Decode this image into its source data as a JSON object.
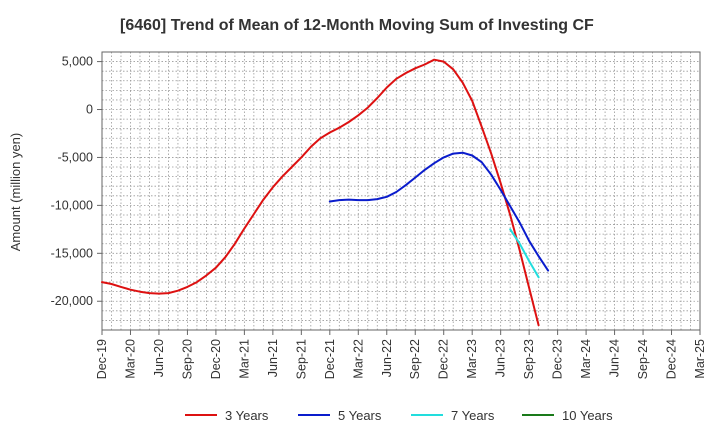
{
  "chart_data": {
    "type": "line",
    "title": "[6460]  Trend of Mean of 12-Month Moving Sum of Investing CF",
    "xlabel": "",
    "ylabel": "Amount (million yen)",
    "ylim": [
      -23000,
      6000
    ],
    "yticks": [
      5000,
      0,
      -5000,
      -10000,
      -15000,
      -20000
    ],
    "ytick_labels": [
      "5,000",
      "0",
      "-5,000",
      "-10,000",
      "-15,000",
      "-20,000"
    ],
    "x_tick_labels": [
      "Dec-19",
      "Mar-20",
      "Jun-20",
      "Sep-20",
      "Dec-20",
      "Mar-21",
      "Jun-21",
      "Sep-21",
      "Dec-21",
      "Mar-22",
      "Jun-22",
      "Sep-22",
      "Dec-22",
      "Mar-23",
      "Jun-23",
      "Sep-23",
      "Dec-23",
      "Mar-24",
      "Jun-24",
      "Sep-24",
      "Dec-24",
      "Mar-25"
    ],
    "grid": true,
    "legend_position": "bottom",
    "series": [
      {
        "name": "3 Years",
        "color": "#dd1111",
        "start_index": 0,
        "values": [
          -18000,
          -18200,
          -18500,
          -18800,
          -19000,
          -19150,
          -19200,
          -19150,
          -18900,
          -18500,
          -18000,
          -17300,
          -16500,
          -15400,
          -14000,
          -12400,
          -10900,
          -9400,
          -8100,
          -7000,
          -6000,
          -5000,
          -3900,
          -3000,
          -2400,
          -1900,
          -1300,
          -600,
          200,
          1200,
          2300,
          3200,
          3800,
          4300,
          4700,
          5200,
          5000,
          4200,
          2800,
          900,
          -1800,
          -4600,
          -7700,
          -11000,
          -14700,
          -18600,
          -22500
        ]
      },
      {
        "name": "5 Years",
        "color": "#0a1ccc",
        "start_index": 24,
        "values": [
          -9600,
          -9450,
          -9400,
          -9450,
          -9450,
          -9350,
          -9100,
          -8600,
          -7900,
          -7100,
          -6300,
          -5600,
          -5000,
          -4600,
          -4500,
          -4800,
          -5500,
          -6800,
          -8400,
          -10100,
          -11800,
          -13700,
          -15300,
          -16800
        ]
      },
      {
        "name": "7 Years",
        "color": "#22dddd",
        "start_index": 43,
        "values": [
          -12500,
          -14000,
          -15800,
          -17500
        ]
      },
      {
        "name": "10 Years",
        "color": "#1a7a1a",
        "start_index": 0,
        "values": []
      }
    ]
  }
}
